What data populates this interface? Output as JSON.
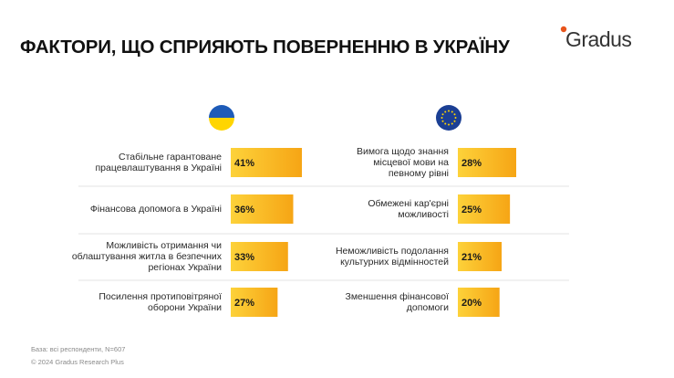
{
  "title": "ФАКТОРИ, ЩО СПРИЯЮТЬ ПОВЕРНЕННЮ В УКРАЇНУ",
  "logo": {
    "text": "Gradus",
    "accent_color": "#E8541B"
  },
  "colors": {
    "bar_start": "#FDD23A",
    "bar_end": "#F6A515",
    "divider": "#E3E3E3",
    "text": "#2A2A2A"
  },
  "icons": {
    "left": "ukraine-flag-icon",
    "right": "eu-flag-icon"
  },
  "chart_data": [
    {
      "type": "bar",
      "orientation": "horizontal",
      "group": "Ukraine",
      "categories": [
        "Стабільне гарантоване працевлаштування в Україні",
        "Фінансова допомога в Україні",
        "Можливість отримання чи облаштування житла в безпечних регіонах України",
        "Посилення протиповітряної оборони України"
      ],
      "category_lines": [
        [
          "Стабільне гарантоване",
          "працевлаштування в Україні"
        ],
        [
          "Фінансова допомога в Україні"
        ],
        [
          "Можливість отримання чи",
          "облаштування житла в безпечних",
          "регіонах України"
        ],
        [
          "Посилення протиповітряної",
          "оборони України"
        ]
      ],
      "values": [
        41,
        36,
        33,
        27
      ],
      "value_labels": [
        "41%",
        "36%",
        "33%",
        "27%"
      ],
      "unit": "%"
    },
    {
      "type": "bar",
      "orientation": "horizontal",
      "group": "EU",
      "categories": [
        "Вимога щодо знання місцевої мови на певному рівні",
        "Обмежені кар'єрні можливості",
        "Неможливість подолання культурних відмінностей",
        "Зменшення фінансової допомоги"
      ],
      "category_lines": [
        [
          "Вимога щодо знання",
          "місцевої мови на",
          "певному рівні"
        ],
        [
          "Обмежені кар'єрні",
          "можливості"
        ],
        [
          "Неможливість подолання",
          "культурних відмінностей"
        ],
        [
          "Зменшення фінансової",
          "допомоги"
        ]
      ],
      "values": [
        28,
        25,
        21,
        20
      ],
      "value_labels": [
        "28%",
        "25%",
        "21%",
        "20%"
      ],
      "unit": "%"
    }
  ],
  "footer": {
    "base": "База: всі респонденти, N=607",
    "copyright": "© 2024 Gradus Research Plus"
  }
}
